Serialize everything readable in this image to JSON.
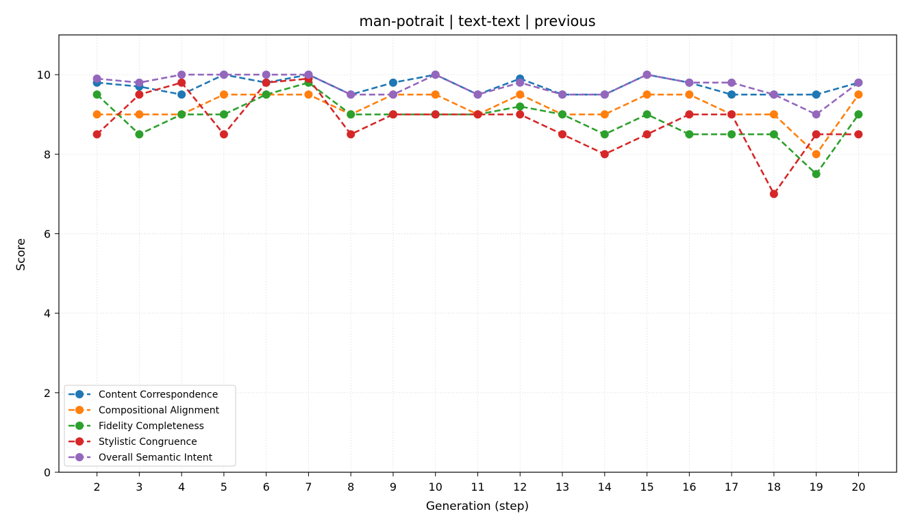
{
  "chart_data": {
    "type": "line",
    "title": "man-potrait | text-text | previous",
    "xlabel": "Generation (step)",
    "ylabel": "Score",
    "x": [
      2,
      3,
      4,
      5,
      6,
      7,
      8,
      9,
      10,
      11,
      12,
      13,
      14,
      15,
      16,
      17,
      18,
      19,
      20
    ],
    "xlim": [
      1.1,
      20.9
    ],
    "ylim": [
      0,
      11
    ],
    "yticks": [
      0,
      2,
      4,
      6,
      8,
      10
    ],
    "grid": true,
    "legend_position": "lower-left",
    "line_style": "dashed",
    "marker": "circle",
    "series": [
      {
        "name": "Content Correspondence",
        "color": "#1f77b4",
        "values": [
          9.8,
          9.7,
          9.5,
          10,
          9.8,
          10,
          9.5,
          9.8,
          10,
          9.5,
          9.9,
          9.5,
          9.5,
          10,
          9.8,
          9.5,
          9.5,
          9.5,
          9.8
        ]
      },
      {
        "name": "Compositional Alignment",
        "color": "#ff7f0e",
        "values": [
          9,
          9,
          9,
          9.5,
          9.5,
          9.5,
          9,
          9.5,
          9.5,
          9,
          9.5,
          9,
          9,
          9.5,
          9.5,
          9,
          9,
          8,
          9.5
        ]
      },
      {
        "name": "Fidelity Completeness",
        "color": "#2ca02c",
        "values": [
          9.5,
          8.5,
          9,
          9,
          9.5,
          9.8,
          9,
          9,
          9,
          9,
          9.2,
          9,
          8.5,
          9,
          8.5,
          8.5,
          8.5,
          7.5,
          9
        ]
      },
      {
        "name": "Stylistic Congruence",
        "color": "#d62728",
        "values": [
          8.5,
          9.5,
          9.8,
          8.5,
          9.8,
          9.9,
          8.5,
          9,
          9,
          9,
          9,
          8.5,
          8,
          8.5,
          9,
          9,
          7,
          8.5,
          8.5
        ]
      },
      {
        "name": "Overall Semantic Intent",
        "color": "#9467bd",
        "values": [
          9.9,
          9.8,
          10,
          10,
          10,
          10,
          9.5,
          9.5,
          10,
          9.5,
          9.8,
          9.5,
          9.5,
          10,
          9.8,
          9.8,
          9.5,
          9,
          9.8
        ]
      }
    ]
  }
}
